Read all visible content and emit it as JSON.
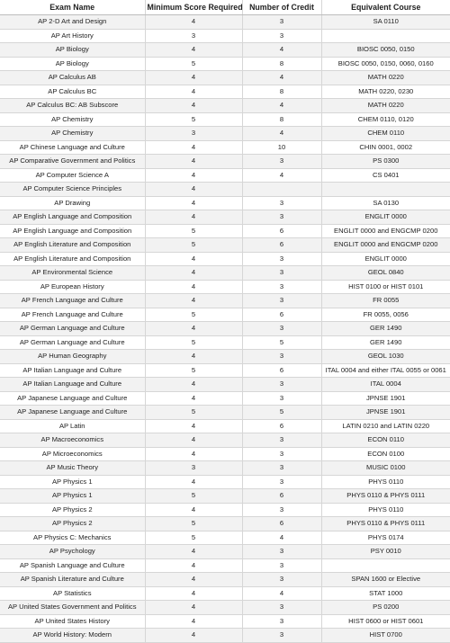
{
  "table": {
    "headers": [
      "Exam Name",
      "Minimum Score Required",
      "Number of Credit",
      "Equivalent Course"
    ],
    "rows": [
      [
        "AP 2-D Art and Design",
        "4",
        "3",
        "SA 0110"
      ],
      [
        "AP Art History",
        "3",
        "3",
        ""
      ],
      [
        "AP Biology",
        "4",
        "4",
        "BIOSC 0050, 0150"
      ],
      [
        "AP Biology",
        "5",
        "8",
        "BIOSC 0050, 0150, 0060, 0160"
      ],
      [
        "AP Calculus AB",
        "4",
        "4",
        "MATH 0220"
      ],
      [
        "AP Calculus BC",
        "4",
        "8",
        "MATH 0220, 0230"
      ],
      [
        "AP Calculus BC: AB Subscore",
        "4",
        "4",
        "MATH 0220"
      ],
      [
        "AP Chemistry",
        "5",
        "8",
        "CHEM 0110, 0120"
      ],
      [
        "AP Chemistry",
        "3",
        "4",
        "CHEM 0110"
      ],
      [
        "AP Chinese Language and Culture",
        "4",
        "10",
        "CHIN 0001, 0002"
      ],
      [
        "AP Comparative Government and Politics",
        "4",
        "3",
        "PS 0300"
      ],
      [
        "AP Computer Science A",
        "4",
        "4",
        "CS 0401"
      ],
      [
        "AP Computer Science Principles",
        "4",
        "",
        ""
      ],
      [
        "AP Drawing",
        "4",
        "3",
        "SA 0130"
      ],
      [
        "AP English Language and Composition",
        "4",
        "3",
        "ENGLIT 0000"
      ],
      [
        "AP English Language and Composition",
        "5",
        "6",
        "ENGLIT 0000 and ENGCMP 0200"
      ],
      [
        "AP English Literature and Composition",
        "5",
        "6",
        "ENGLIT 0000 and ENGCMP 0200"
      ],
      [
        "AP English Literature and Composition",
        "4",
        "3",
        "ENGLIT 0000"
      ],
      [
        "AP Environmental Science",
        "4",
        "3",
        "GEOL 0840"
      ],
      [
        "AP European History",
        "4",
        "3",
        "HIST 0100 or HIST 0101"
      ],
      [
        "AP French Language and Culture",
        "4",
        "3",
        "FR 0055"
      ],
      [
        "AP French Language and Culture",
        "5",
        "6",
        "FR 0055, 0056"
      ],
      [
        "AP German Language and Culture",
        "4",
        "3",
        "GER 1490"
      ],
      [
        "AP German Language and Culture",
        "5",
        "5",
        "GER 1490"
      ],
      [
        "AP Human Geography",
        "4",
        "3",
        "GEOL 1030"
      ],
      [
        "AP Italian Language and Culture",
        "5",
        "6",
        "ITAL 0004 and either ITAL 0055 or 0061"
      ],
      [
        "AP Italian Language and Culture",
        "4",
        "3",
        "ITAL 0004"
      ],
      [
        "AP Japanese Language and Culture",
        "4",
        "3",
        "JPNSE 1901"
      ],
      [
        "AP Japanese Language and Culture",
        "5",
        "5",
        "JPNSE 1901"
      ],
      [
        "AP Latin",
        "4",
        "6",
        "LATIN 0210 and LATIN 0220"
      ],
      [
        "AP Macroeconomics",
        "4",
        "3",
        "ECON 0110"
      ],
      [
        "AP Microeconomics",
        "4",
        "3",
        "ECON 0100"
      ],
      [
        "AP Music Theory",
        "3",
        "3",
        "MUSIC 0100"
      ],
      [
        "AP Physics 1",
        "4",
        "3",
        "PHYS 0110"
      ],
      [
        "AP Physics 1",
        "5",
        "6",
        "PHYS 0110 & PHYS 0111"
      ],
      [
        "AP Physics 2",
        "4",
        "3",
        "PHYS 0110"
      ],
      [
        "AP Physics 2",
        "5",
        "6",
        "PHYS 0110 & PHYS 0111"
      ],
      [
        "AP Physics C: Mechanics",
        "5",
        "4",
        "PHYS 0174"
      ],
      [
        "AP Psychology",
        "4",
        "3",
        "PSY 0010"
      ],
      [
        "AP Spanish Language and Culture",
        "4",
        "3",
        ""
      ],
      [
        "AP Spanish Literature and Culture",
        "4",
        "3",
        "SPAN 1600 or Elective"
      ],
      [
        "AP Statistics",
        "4",
        "4",
        "STAT 1000"
      ],
      [
        "AP United States Government and Politics",
        "4",
        "3",
        "PS 0200"
      ],
      [
        "AP United States History",
        "4",
        "3",
        "HIST 0600 or HIST 0601"
      ],
      [
        "AP World History: Modern",
        "4",
        "3",
        "HIST 0700"
      ]
    ]
  }
}
